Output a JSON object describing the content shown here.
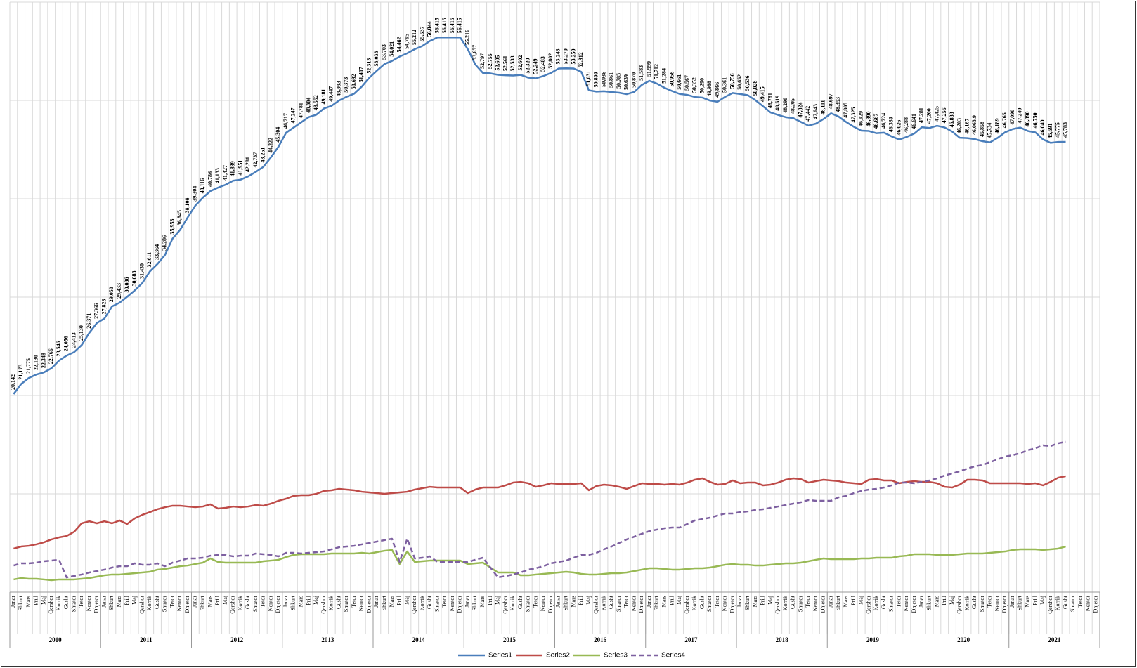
{
  "chart_data": {
    "type": "line",
    "categories": [
      "Janar",
      "Shkurt",
      "Mars",
      "Prill",
      "Maj",
      "Qershor",
      "Korrik",
      "Gusht",
      "Shtator",
      "Tetor",
      "Nentor",
      "Dhjetor",
      "Janar",
      "Shkurt",
      "Mars",
      "Prill",
      "Maj",
      "Qershor",
      "Korrik",
      "Gusht",
      "Shtator",
      "Tetor",
      "Nentor",
      "Dhjetor",
      "Janar",
      "Shkurt",
      "Mars",
      "Prill",
      "Maj",
      "Qershor",
      "Korrik",
      "Gusht",
      "Shtator",
      "Tetor",
      "Nentor",
      "Dhjetor",
      "Janar",
      "Shkurt",
      "Mars",
      "Prill",
      "Maj",
      "Qershor",
      "Korrik",
      "Gusht",
      "Shtator",
      "Tetor",
      "Nentor",
      "Dhjetor",
      "Janar",
      "Shkurt",
      "Mars",
      "Prill",
      "Maj",
      "Qershor",
      "Korrik",
      "Gusht",
      "Shtator",
      "Tetor",
      "Nentor",
      "Dhjetor",
      "Janar",
      "Shkurt",
      "Mars",
      "Prill",
      "Maj",
      "Qershor",
      "Korrik",
      "Gusht",
      "Shtator",
      "Tetor",
      "Nentor",
      "Dhjetor",
      "Janar",
      "Shkurt",
      "Mars",
      "Prill",
      "Maj",
      "Qershor",
      "Korrik",
      "Gusht",
      "Shtator",
      "Tetor",
      "Nentor",
      "Dhjetor",
      "Janar",
      "Shkurt",
      "Mars",
      "Prill",
      "Maj",
      "Qershor",
      "Korrik",
      "Gusht",
      "Shtator",
      "Tetor",
      "Nentor",
      "Dhjetor",
      "Janar",
      "Shkurt",
      "Mars",
      "Prill",
      "Maj",
      "Qershor",
      "Korrik",
      "Gusht",
      "Shtator",
      "Tetor",
      "Nentor",
      "Dhjetor",
      "Janar",
      "Shkurt",
      "Mars",
      "Prill",
      "Maj",
      "Qershor",
      "Korrik",
      "Gusht",
      "Shtator",
      "Tetor",
      "Nentor",
      "Dhjetor",
      "Janar",
      "Shkurt",
      "Mars",
      "Prill",
      "Maj",
      "Qershor",
      "Korrik",
      "Gusht",
      "Shtator",
      "Tetor",
      "Nentor",
      "Dhjetor",
      "Janar",
      "Shkurt",
      "Mars",
      "Prill",
      "Maj",
      "Qershor",
      "Korrik",
      "Gusht",
      "Shtator",
      "Tetor",
      "Nentor",
      "Dhjetor"
    ],
    "category_groups": [
      "2010",
      "2011",
      "2012",
      "2013",
      "2014",
      "2015",
      "2016",
      "2017",
      "2018",
      "2019",
      "2020",
      "2021"
    ],
    "ylim": [
      0,
      60000
    ],
    "yticks": [
      0,
      10000,
      20000,
      30000,
      40000,
      50000,
      60000
    ],
    "grid": true,
    "series": [
      {
        "name": "Series1",
        "color": "#4a7ebb",
        "values": [
          20142,
          21173,
          21775,
          22130,
          22348,
          22766,
          23546,
          24056,
          24413,
          25130,
          26371,
          27366,
          27823,
          29050,
          29433,
          30036,
          30683,
          31430,
          32611,
          33364,
          34286,
          35953,
          36845,
          38108,
          39304,
          40116,
          40786,
          41133,
          41427,
          41839,
          41951,
          42281,
          42737,
          43251,
          44222,
          45304,
          46717,
          47247,
          47781,
          48304,
          48552,
          49181,
          49447,
          49993,
          50373,
          50692,
          51407,
          52313,
          53033,
          53703,
          54021,
          54462,
          54795,
          55212,
          55537,
          56044,
          56415,
          56415,
          56415,
          56415,
          55216,
          53657,
          52797,
          52755,
          52605,
          52561,
          52538,
          52602,
          52320,
          52249,
          52483,
          52802,
          53248,
          53270,
          53250,
          52912,
          51031,
          50899,
          50936,
          50861,
          50785,
          50639,
          50870,
          51583,
          51999,
          51712,
          51284,
          50958,
          50661,
          50567,
          50352,
          50290,
          49988,
          49866,
          50361,
          50756,
          50652,
          50536,
          50028,
          49415,
          48781,
          48519,
          48296,
          48205,
          47824,
          47442,
          47643,
          48111,
          48697,
          48353,
          47805,
          47325,
          46929,
          46890,
          46667,
          46724,
          46339,
          46026,
          46288,
          46641,
          47281,
          47200,
          47425,
          47256,
          46833,
          46203,
          46167,
          46063.9,
          45858,
          45734,
          46189,
          46765,
          47090,
          47240,
          46890,
          46750,
          46040,
          45691,
          45775,
          45783,
          null,
          null,
          null,
          null
        ],
        "value_labels": [
          "20,142",
          "21,173",
          "21,775",
          "22,130",
          "22,348",
          "22,766",
          "23,546",
          "24,056",
          "24,413",
          "25,130",
          "26,371",
          "27,366",
          "27,823",
          "29,050",
          "29,433",
          "30,036",
          "30,683",
          "31,430",
          "32,611",
          "33,364",
          "34,286",
          "35,953",
          "36,845",
          "38,108",
          "39,304",
          "40,116",
          "40,786",
          "41,133",
          "41,427",
          "41,839",
          "41,951",
          "42,281",
          "42,737",
          "43,251",
          "44,222",
          "45,304",
          "46,717",
          "47,247",
          "47,781",
          "48,304",
          "48,552",
          "49,181",
          "49,447",
          "49,993",
          "50,373",
          "50,692",
          "51,407",
          "52,313",
          "53,033",
          "53,703",
          "54,021",
          "54,462",
          "54,795",
          "55,212",
          "55,537",
          "56,044",
          "56,415",
          "56,415",
          "56,415",
          "56,415",
          "55,216",
          "53,657",
          "52,797",
          "52,755",
          "52,605",
          "52,561",
          "52,538",
          "52,602",
          "52,320",
          "52,249",
          "52,483",
          "52,802",
          "53,248",
          "53,270",
          "53,250",
          "52,912",
          "51,031",
          "50,899",
          "50,936",
          "50,861",
          "50,785",
          "50,639",
          "50,870",
          "51,583",
          "51,999",
          "51,712",
          "51,284",
          "50,958",
          "50,661",
          "50,567",
          "50,352",
          "50,290",
          "49,988",
          "49,866",
          "50,361",
          "50,756",
          "50,652",
          "50,536",
          "50,028",
          "49,415",
          "48,781",
          "48,519",
          "48,296",
          "48,205",
          "47,824",
          "47,442",
          "47,643",
          "48,111",
          "48,697",
          "48,353",
          "47,805",
          "47,325",
          "46,929",
          "46,890",
          "46,667",
          "46,724",
          "46,339",
          "46,026",
          "46,288",
          "46,641",
          "47,281",
          "47,200",
          "47,425",
          "47,256",
          "46,833",
          "46,203",
          "46,167",
          "46,063.9",
          "45,858",
          "45,734",
          "46,189",
          "46,765",
          "47,090",
          "47,240",
          "46,890",
          "46,750",
          "46,040",
          "45,691",
          "45,775",
          "45,783",
          null,
          null,
          null,
          null
        ]
      },
      {
        "name": "Series2",
        "color": "#be4b48",
        "values": [
          4430,
          4640,
          4710,
          4860,
          5070,
          5360,
          5570,
          5710,
          6140,
          7000,
          7210,
          7000,
          7210,
          7000,
          7290,
          6930,
          7500,
          7860,
          8140,
          8430,
          8640,
          8790,
          8790,
          8710,
          8640,
          8710,
          8930,
          8500,
          8570,
          8710,
          8640,
          8710,
          8860,
          8790,
          9000,
          9290,
          9500,
          9790,
          9860,
          9860,
          10000,
          10290,
          10360,
          10500,
          10430,
          10360,
          10210,
          10140,
          10070,
          10000,
          10070,
          10140,
          10210,
          10430,
          10570,
          10710,
          10640,
          10640,
          10640,
          10640,
          10070,
          10430,
          10640,
          10640,
          10640,
          10860,
          11140,
          11210,
          11070,
          10710,
          10860,
          11070,
          11000,
          11000,
          11000,
          11070,
          10360,
          10790,
          10930,
          10860,
          10710,
          10500,
          10790,
          11070,
          11000,
          11000,
          10930,
          11000,
          10930,
          11140,
          11430,
          11570,
          11210,
          10930,
          11000,
          11360,
          11070,
          11140,
          11140,
          10860,
          10930,
          11140,
          11430,
          11570,
          11500,
          11140,
          11290,
          11430,
          11360,
          11290,
          11140,
          11070,
          11000,
          11430,
          11500,
          11360,
          11360,
          11070,
          11210,
          11290,
          11210,
          11210,
          11070,
          10710,
          10640,
          10930,
          11430,
          11430,
          11360,
          11070,
          11070,
          11070,
          11070,
          11070,
          11000,
          11070,
          10860,
          11210,
          11640,
          11790,
          null,
          null,
          null,
          null
        ]
      },
      {
        "name": "Series3",
        "color": "#98b954",
        "values": [
          1290,
          1430,
          1360,
          1360,
          1290,
          1210,
          1290,
          1290,
          1290,
          1360,
          1430,
          1570,
          1710,
          1790,
          1790,
          1860,
          1930,
          2000,
          2070,
          2290,
          2360,
          2500,
          2640,
          2710,
          2860,
          3000,
          3430,
          3070,
          3000,
          3000,
          3000,
          3000,
          3000,
          3140,
          3210,
          3290,
          3570,
          3790,
          3860,
          3860,
          3860,
          3860,
          3930,
          3930,
          3930,
          3930,
          4000,
          3930,
          4070,
          4210,
          4290,
          2860,
          4140,
          3070,
          3140,
          3210,
          3210,
          3210,
          3210,
          3210,
          2860,
          2930,
          3000,
          2500,
          2000,
          2000,
          2000,
          1710,
          1710,
          1790,
          1860,
          1930,
          2000,
          2070,
          2000,
          1860,
          1790,
          1790,
          1860,
          1930,
          1930,
          2000,
          2140,
          2290,
          2430,
          2430,
          2360,
          2290,
          2290,
          2360,
          2430,
          2430,
          2500,
          2640,
          2790,
          2860,
          2790,
          2790,
          2710,
          2710,
          2790,
          2860,
          2930,
          2930,
          3000,
          3140,
          3290,
          3430,
          3360,
          3360,
          3360,
          3360,
          3430,
          3430,
          3500,
          3500,
          3500,
          3640,
          3710,
          3860,
          3860,
          3860,
          3790,
          3790,
          3790,
          3860,
          3930,
          3930,
          3930,
          4000,
          4070,
          4140,
          4290,
          4360,
          4360,
          4360,
          4290,
          4360,
          4430,
          4640,
          null,
          null,
          null,
          null
        ]
      },
      {
        "name": "Series4",
        "color": "#7d60a0",
        "dashed": true,
        "values": [
          2710,
          2930,
          2930,
          3000,
          3140,
          3210,
          3290,
          1500,
          1640,
          1790,
          2000,
          2140,
          2290,
          2500,
          2640,
          2640,
          2930,
          2790,
          2790,
          2930,
          2640,
          3000,
          3210,
          3430,
          3430,
          3500,
          3710,
          3790,
          3790,
          3640,
          3710,
          3710,
          3930,
          3860,
          3790,
          3640,
          4000,
          4000,
          3930,
          4000,
          4070,
          4140,
          4360,
          4570,
          4640,
          4710,
          4860,
          5000,
          5140,
          5290,
          5430,
          3070,
          5430,
          3430,
          3500,
          3640,
          3070,
          3070,
          3070,
          3070,
          3070,
          3290,
          3500,
          2500,
          1500,
          1640,
          1790,
          2000,
          2290,
          2430,
          2640,
          2930,
          3070,
          3210,
          3500,
          3790,
          3790,
          4000,
          4360,
          4640,
          5000,
          5360,
          5640,
          5930,
          6210,
          6360,
          6500,
          6570,
          6570,
          6930,
          7290,
          7430,
          7570,
          7790,
          8000,
          8000,
          8140,
          8210,
          8360,
          8430,
          8570,
          8710,
          8860,
          9000,
          9140,
          9360,
          9290,
          9290,
          9290,
          9640,
          9790,
          10070,
          10290,
          10430,
          10500,
          10640,
          10860,
          11140,
          11140,
          11070,
          11210,
          11360,
          11570,
          11860,
          12070,
          12290,
          12570,
          12790,
          12930,
          13210,
          13500,
          13790,
          13930,
          14140,
          14430,
          14640,
          14930,
          14860,
          15140,
          15290,
          null,
          null,
          null,
          null
        ]
      }
    ]
  }
}
